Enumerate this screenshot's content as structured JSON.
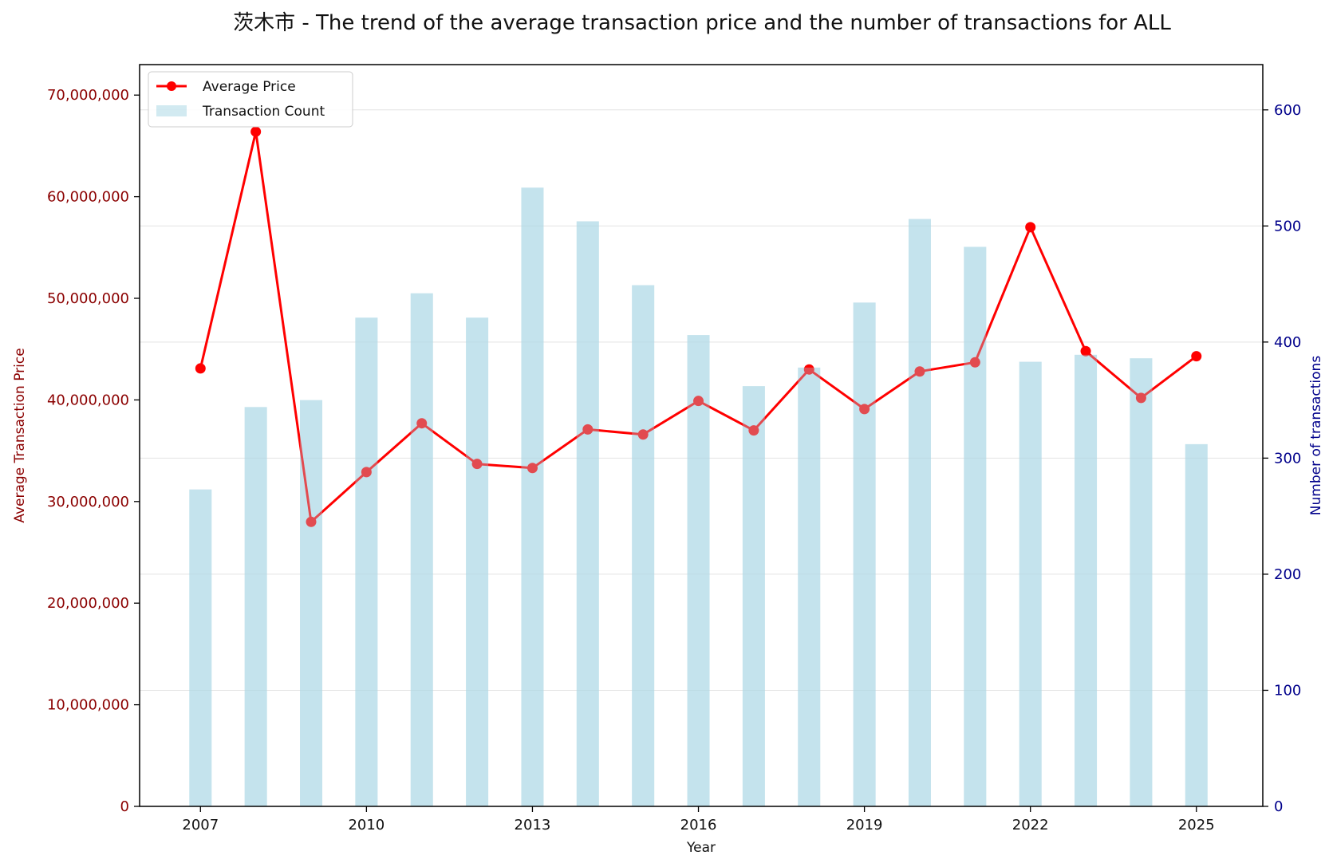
{
  "chart_data": {
    "type": "bar",
    "title": "茨木市 - The trend of the average transaction price and the number of transactions for ALL",
    "xlabel": "Year",
    "ylabel_left": "Average Transaction Price",
    "ylabel_right": "Number of transactions",
    "x": [
      2007,
      2008,
      2009,
      2010,
      2011,
      2012,
      2013,
      2014,
      2015,
      2016,
      2017,
      2018,
      2019,
      2020,
      2021,
      2022,
      2023,
      2024,
      2025
    ],
    "x_ticks": [
      "2007",
      "2010",
      "2013",
      "2016",
      "2019",
      "2022",
      "2025"
    ],
    "x_range": [
      2005.9,
      2026.2
    ],
    "y_left_ticks": [
      "0",
      "10,000,000",
      "20,000,000",
      "30,000,000",
      "40,000,000",
      "50,000,000",
      "60,000,000",
      "70,000,000"
    ],
    "y_left_tick_values": [
      0,
      10000000,
      20000000,
      30000000,
      40000000,
      50000000,
      60000000,
      70000000
    ],
    "y_left_range": [
      0,
      73000000
    ],
    "y_right_ticks": [
      "0",
      "100",
      "200",
      "300",
      "400",
      "500",
      "600"
    ],
    "y_right_tick_values": [
      0,
      100,
      200,
      300,
      400,
      500,
      600
    ],
    "y_right_range": [
      0,
      639
    ],
    "grid": true,
    "legend_position": "top-left",
    "series": [
      {
        "name": "Average Price",
        "type": "line",
        "axis": "left",
        "color": "#ff0000",
        "values": [
          43100000,
          66400000,
          28000000,
          32900000,
          37700000,
          33700000,
          33300000,
          37100000,
          36600000,
          39900000,
          37000000,
          43000000,
          39100000,
          42800000,
          43700000,
          57000000,
          44800000,
          40200000,
          44300000
        ]
      },
      {
        "name": "Transaction Count",
        "type": "bar",
        "axis": "right",
        "color": "#add8e6",
        "values": [
          273,
          344,
          350,
          421,
          442,
          421,
          533,
          504,
          449,
          406,
          362,
          378,
          434,
          506,
          482,
          383,
          389,
          386,
          312
        ]
      }
    ],
    "colors": {
      "left_axis": "#8b0000",
      "right_axis": "#00008b",
      "grid": "#e3e3e3",
      "line": "#ff0000",
      "bar": "#add8e6"
    }
  }
}
